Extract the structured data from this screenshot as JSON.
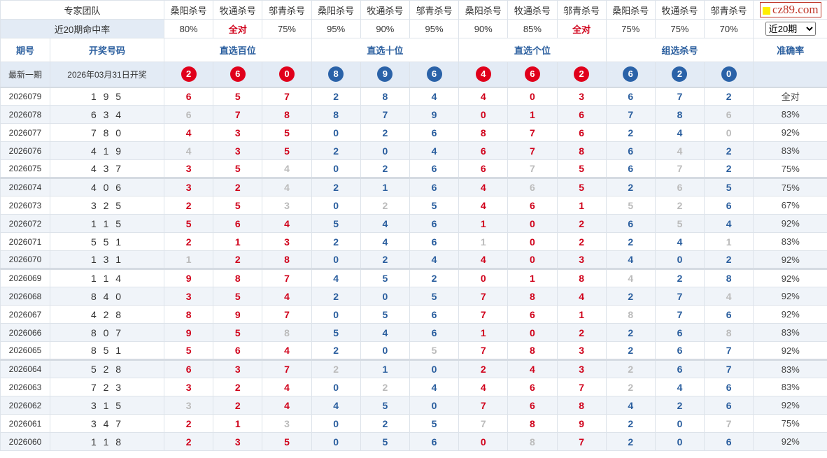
{
  "header": {
    "team_label": "专家团队",
    "experts": [
      "桑阳杀号",
      "牧通杀号",
      "邬青杀号",
      "桑阳杀号",
      "牧通杀号",
      "邬青杀号",
      "桑阳杀号",
      "牧通杀号",
      "邬青杀号",
      "桑阳杀号",
      "牧通杀号",
      "邬青杀号"
    ],
    "logo_text": "cz89.com",
    "hit_rate_label": "近20期命中率",
    "hit_rates": [
      "80%",
      "全对",
      "75%",
      "95%",
      "90%",
      "95%",
      "90%",
      "85%",
      "全对",
      "75%",
      "75%",
      "70%"
    ],
    "period_select": {
      "selected": "近20期"
    },
    "col_period": "期号",
    "col_draw": "开奖号码",
    "groups": [
      "直选百位",
      "直选十位",
      "直选个位",
      "组选杀号"
    ],
    "col_accuracy": "准确率"
  },
  "latest": {
    "label": "最新一期",
    "date": "2026年03月31日开奖",
    "balls": [
      "2",
      "6",
      "0",
      "8",
      "9",
      "6",
      "4",
      "6",
      "2",
      "6",
      "2",
      "0"
    ]
  },
  "colors": {
    "red": "#d0021b",
    "blue": "#2a5e9e",
    "miss": "#bbbbbb",
    "ball_red": "#e0001b",
    "ball_blue": "#2a62a8"
  },
  "rows": [
    {
      "period": "2026079",
      "draw": "1 9 5",
      "nums": [
        6,
        5,
        7,
        2,
        8,
        4,
        4,
        0,
        3,
        6,
        7,
        2
      ],
      "miss": [],
      "rate": "全对"
    },
    {
      "period": "2026078",
      "draw": "6 3 4",
      "nums": [
        6,
        7,
        8,
        8,
        7,
        9,
        0,
        1,
        6,
        7,
        8,
        6
      ],
      "miss": [
        0,
        11
      ],
      "rate": "83%"
    },
    {
      "period": "2026077",
      "draw": "7 8 0",
      "nums": [
        4,
        3,
        5,
        0,
        2,
        6,
        8,
        7,
        6,
        2,
        4,
        0
      ],
      "miss": [
        11
      ],
      "rate": "92%"
    },
    {
      "period": "2026076",
      "draw": "4 1 9",
      "nums": [
        4,
        3,
        5,
        2,
        0,
        4,
        6,
        7,
        8,
        6,
        4,
        2
      ],
      "miss": [
        0,
        10
      ],
      "rate": "83%"
    },
    {
      "period": "2026075",
      "draw": "4 3 7",
      "nums": [
        3,
        5,
        4,
        0,
        2,
        6,
        6,
        7,
        5,
        6,
        7,
        2
      ],
      "miss": [
        2,
        7,
        10
      ],
      "rate": "75%"
    },
    {
      "period": "2026074",
      "draw": "4 0 6",
      "nums": [
        3,
        2,
        4,
        2,
        1,
        6,
        4,
        6,
        5,
        2,
        6,
        5
      ],
      "miss": [
        2,
        7,
        10
      ],
      "rate": "75%"
    },
    {
      "period": "2026073",
      "draw": "3 2 5",
      "nums": [
        2,
        5,
        3,
        0,
        2,
        5,
        4,
        6,
        1,
        5,
        2,
        6
      ],
      "miss": [
        2,
        4,
        9,
        10
      ],
      "rate": "67%"
    },
    {
      "period": "2026072",
      "draw": "1 1 5",
      "nums": [
        5,
        6,
        4,
        5,
        4,
        6,
        1,
        0,
        2,
        6,
        5,
        4
      ],
      "miss": [
        10
      ],
      "rate": "92%"
    },
    {
      "period": "2026071",
      "draw": "5 5 1",
      "nums": [
        2,
        1,
        3,
        2,
        4,
        6,
        1,
        0,
        2,
        2,
        4,
        1
      ],
      "miss": [
        6,
        11
      ],
      "rate": "83%"
    },
    {
      "period": "2026070",
      "draw": "1 3 1",
      "nums": [
        1,
        2,
        8,
        0,
        2,
        4,
        4,
        0,
        3,
        4,
        0,
        2
      ],
      "miss": [
        0
      ],
      "rate": "92%"
    },
    {
      "period": "2026069",
      "draw": "1 1 4",
      "nums": [
        9,
        8,
        7,
        4,
        5,
        2,
        0,
        1,
        8,
        4,
        2,
        8
      ],
      "miss": [
        9
      ],
      "rate": "92%"
    },
    {
      "period": "2026068",
      "draw": "8 4 0",
      "nums": [
        3,
        5,
        4,
        2,
        0,
        5,
        7,
        8,
        4,
        2,
        7,
        4
      ],
      "miss": [
        11
      ],
      "rate": "92%"
    },
    {
      "period": "2026067",
      "draw": "4 2 8",
      "nums": [
        8,
        9,
        7,
        0,
        5,
        6,
        7,
        6,
        1,
        8,
        7,
        6
      ],
      "miss": [
        9
      ],
      "rate": "92%"
    },
    {
      "period": "2026066",
      "draw": "8 0 7",
      "nums": [
        9,
        5,
        8,
        5,
        4,
        6,
        1,
        0,
        2,
        2,
        6,
        8
      ],
      "miss": [
        2,
        11
      ],
      "rate": "83%"
    },
    {
      "period": "2026065",
      "draw": "8 5 1",
      "nums": [
        5,
        6,
        4,
        2,
        0,
        5,
        7,
        8,
        3,
        2,
        6,
        7
      ],
      "miss": [
        5
      ],
      "rate": "92%"
    },
    {
      "period": "2026064",
      "draw": "5 2 8",
      "nums": [
        6,
        3,
        7,
        2,
        1,
        0,
        2,
        4,
        3,
        2,
        6,
        7
      ],
      "miss": [
        3,
        9
      ],
      "rate": "83%"
    },
    {
      "period": "2026063",
      "draw": "7 2 3",
      "nums": [
        3,
        2,
        4,
        0,
        2,
        4,
        4,
        6,
        7,
        2,
        4,
        6
      ],
      "miss": [
        4,
        9
      ],
      "rate": "83%"
    },
    {
      "period": "2026062",
      "draw": "3 1 5",
      "nums": [
        3,
        2,
        4,
        4,
        5,
        0,
        7,
        6,
        8,
        4,
        2,
        6
      ],
      "miss": [
        0
      ],
      "rate": "92%"
    },
    {
      "period": "2026061",
      "draw": "3 4 7",
      "nums": [
        2,
        1,
        3,
        0,
        2,
        5,
        7,
        8,
        9,
        2,
        0,
        7
      ],
      "miss": [
        2,
        6,
        11
      ],
      "rate": "75%"
    },
    {
      "period": "2026060",
      "draw": "1 1 8",
      "nums": [
        2,
        3,
        5,
        0,
        5,
        6,
        0,
        8,
        7,
        2,
        0,
        6
      ],
      "miss": [
        7
      ],
      "rate": "92%"
    }
  ]
}
